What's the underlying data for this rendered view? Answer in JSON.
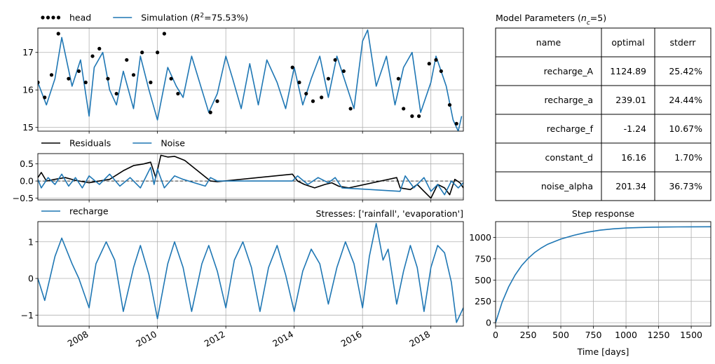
{
  "chart_data": [
    {
      "id": "head",
      "type": "line",
      "legend": [
        {
          "label": "head",
          "style": "dots",
          "color": "#000000"
        },
        {
          "label": "Simulation ($R^2$=75.53%)",
          "style": "line",
          "color": "#1f77b4"
        }
      ],
      "ylim": [
        14.9,
        17.65
      ],
      "yticks": [
        15,
        16,
        17
      ],
      "grid": true,
      "series": [
        {
          "name": "Simulation",
          "color": "#1f77b4",
          "x": [
            2006.5,
            2006.75,
            2007.0,
            2007.2,
            2007.5,
            2007.75,
            2008.0,
            2008.15,
            2008.4,
            2008.6,
            2008.8,
            2009.0,
            2009.3,
            2009.5,
            2009.75,
            2010.0,
            2010.3,
            2010.55,
            2010.75,
            2011.0,
            2011.3,
            2011.5,
            2011.75,
            2012.0,
            2012.2,
            2012.45,
            2012.7,
            2012.95,
            2013.2,
            2013.5,
            2013.75,
            2014.0,
            2014.25,
            2014.5,
            2014.75,
            2015.0,
            2015.25,
            2015.5,
            2015.75,
            2016.0,
            2016.15,
            2016.4,
            2016.7,
            2016.95,
            2017.2,
            2017.45,
            2017.7,
            2018.0,
            2018.15,
            2018.45,
            2018.65,
            2018.8,
            2018.9
          ],
          "y": [
            16.2,
            15.6,
            16.3,
            17.4,
            16.1,
            16.8,
            15.3,
            16.6,
            17.0,
            16.0,
            15.6,
            16.5,
            15.5,
            16.9,
            16.0,
            15.2,
            16.6,
            16.1,
            15.8,
            16.9,
            16.0,
            15.4,
            15.9,
            16.9,
            16.3,
            15.5,
            16.7,
            15.6,
            16.8,
            16.2,
            15.5,
            16.6,
            15.6,
            16.3,
            16.9,
            15.8,
            16.9,
            16.2,
            15.5,
            17.3,
            17.6,
            16.1,
            16.9,
            15.6,
            16.6,
            17.0,
            15.4,
            16.2,
            16.9,
            16.1,
            15.2,
            14.9,
            15.3
          ]
        },
        {
          "name": "head",
          "color": "#000000",
          "x": [
            2006.5,
            2006.7,
            2006.9,
            2007.1,
            2007.4,
            2007.7,
            2007.9,
            2008.1,
            2008.3,
            2008.55,
            2008.8,
            2009.1,
            2009.3,
            2009.55,
            2009.8,
            2010.0,
            2010.2,
            2010.4,
            2010.6,
            2011.55,
            2011.75,
            2013.95,
            2014.15,
            2014.35,
            2014.55,
            2014.8,
            2015.0,
            2015.2,
            2015.45,
            2015.65,
            2017.05,
            2017.2,
            2017.45,
            2017.65,
            2017.95,
            2018.15,
            2018.3,
            2018.55,
            2018.75
          ],
          "y": [
            16.2,
            15.8,
            16.4,
            17.5,
            16.3,
            16.5,
            16.2,
            16.9,
            17.1,
            16.3,
            15.9,
            16.8,
            16.4,
            17.0,
            16.2,
            17.0,
            17.5,
            16.3,
            15.9,
            15.4,
            15.7,
            16.6,
            16.2,
            15.9,
            15.7,
            15.8,
            16.3,
            16.8,
            16.5,
            15.5,
            16.3,
            15.5,
            15.3,
            15.3,
            16.7,
            16.8,
            16.5,
            15.6,
            15.1
          ]
        }
      ]
    },
    {
      "id": "residuals",
      "type": "line",
      "legend": [
        {
          "label": "Residuals",
          "style": "line",
          "color": "#000000"
        },
        {
          "label": "Noise",
          "style": "line",
          "color": "#1f77b4"
        }
      ],
      "ylim": [
        -0.55,
        0.8
      ],
      "yticks": [
        0.5,
        0.0,
        -0.5
      ],
      "ytick_labels": [
        "0.5",
        "0.0",
        "−0.5"
      ],
      "grid": true,
      "series": [
        {
          "name": "Residuals",
          "color": "#000000",
          "x": [
            2006.5,
            2006.6,
            2006.75,
            2007.0,
            2007.3,
            2007.6,
            2008.0,
            2008.3,
            2008.6,
            2009.0,
            2009.3,
            2009.6,
            2009.8,
            2009.95,
            2010.1,
            2010.3,
            2010.5,
            2010.8,
            2011.55,
            2011.75,
            2013.95,
            2014.1,
            2014.3,
            2014.6,
            2014.9,
            2015.1,
            2015.3,
            2015.6,
            2017.0,
            2017.1,
            2017.4,
            2017.6,
            2017.8,
            2018.0,
            2018.2,
            2018.4,
            2018.55,
            2018.7,
            2018.85,
            2018.95
          ],
          "y": [
            0.1,
            0.25,
            0.0,
            0.05,
            0.1,
            0.02,
            -0.05,
            0.0,
            0.05,
            0.3,
            0.45,
            0.5,
            0.55,
            0.1,
            0.75,
            0.7,
            0.72,
            0.6,
            0.0,
            -0.02,
            0.2,
            0.0,
            -0.1,
            -0.2,
            -0.1,
            -0.05,
            -0.15,
            -0.2,
            0.1,
            -0.2,
            -0.25,
            -0.1,
            -0.3,
            -0.5,
            -0.1,
            -0.2,
            -0.4,
            0.05,
            -0.05,
            -0.2
          ]
        },
        {
          "name": "Noise",
          "color": "#1f77b4",
          "x": [
            2006.5,
            2006.6,
            2006.8,
            2007.0,
            2007.2,
            2007.4,
            2007.6,
            2007.8,
            2008.0,
            2008.3,
            2008.6,
            2008.9,
            2009.2,
            2009.5,
            2009.8,
            2009.9,
            2010.0,
            2010.2,
            2010.5,
            2010.75,
            2011.4,
            2011.55,
            2011.75,
            2013.95,
            2014.1,
            2014.4,
            2014.7,
            2015.0,
            2015.2,
            2015.4,
            2017.1,
            2017.25,
            2017.5,
            2017.8,
            2018.0,
            2018.2,
            2018.4,
            2018.6,
            2018.8,
            2018.95
          ],
          "y": [
            0.05,
            -0.2,
            0.1,
            -0.1,
            0.2,
            -0.15,
            0.1,
            -0.2,
            0.15,
            -0.1,
            0.2,
            -0.15,
            0.1,
            -0.2,
            0.4,
            -0.1,
            0.35,
            -0.2,
            0.15,
            0.05,
            -0.15,
            0.1,
            0.0,
            0.0,
            0.15,
            -0.1,
            0.1,
            -0.05,
            0.1,
            -0.2,
            -0.3,
            0.15,
            -0.2,
            0.1,
            -0.3,
            -0.1,
            -0.4,
            0.0,
            -0.2,
            -0.05
          ]
        }
      ]
    },
    {
      "id": "stresses",
      "type": "line",
      "legend": [
        {
          "label": "recharge",
          "style": "line",
          "color": "#1f77b4"
        }
      ],
      "title_right": "Stresses: ['rainfall', 'evaporation']",
      "ylim": [
        -1.3,
        1.55
      ],
      "yticks": [
        1,
        0,
        -1
      ],
      "ytick_labels": [
        "1",
        "0",
        "−1"
      ],
      "xlim": [
        2006.5,
        2018.95
      ],
      "xticks": [
        2008,
        2010,
        2012,
        2014,
        2016,
        2018
      ],
      "xtick_labels": [
        "2008",
        "2010",
        "2012",
        "2014",
        "2016",
        "2018"
      ],
      "grid": true,
      "series": [
        {
          "name": "recharge",
          "color": "#1f77b4",
          "x": [
            2006.5,
            2006.7,
            2007.0,
            2007.2,
            2007.5,
            2007.7,
            2008.0,
            2008.2,
            2008.5,
            2008.75,
            2009.0,
            2009.3,
            2009.5,
            2009.75,
            2010.0,
            2010.3,
            2010.5,
            2010.75,
            2011.0,
            2011.3,
            2011.5,
            2011.75,
            2012.0,
            2012.25,
            2012.5,
            2012.75,
            2013.0,
            2013.25,
            2013.5,
            2013.75,
            2014.0,
            2014.25,
            2014.5,
            2014.75,
            2015.0,
            2015.25,
            2015.5,
            2015.75,
            2016.0,
            2016.2,
            2016.4,
            2016.6,
            2016.75,
            2017.0,
            2017.2,
            2017.4,
            2017.6,
            2017.8,
            2018.0,
            2018.2,
            2018.4,
            2018.6,
            2018.75,
            2018.95
          ],
          "y": [
            0.0,
            -0.6,
            0.6,
            1.1,
            0.4,
            0.0,
            -0.8,
            0.4,
            1.0,
            0.5,
            -0.9,
            0.3,
            0.9,
            0.1,
            -1.1,
            0.4,
            1.0,
            0.3,
            -0.9,
            0.4,
            0.9,
            0.2,
            -0.8,
            0.5,
            1.0,
            0.3,
            -0.9,
            0.3,
            0.9,
            0.1,
            -0.9,
            0.2,
            0.8,
            0.4,
            -0.7,
            0.3,
            1.0,
            0.4,
            -0.8,
            0.6,
            1.5,
            0.5,
            0.8,
            -0.7,
            0.2,
            0.9,
            0.3,
            -0.9,
            0.3,
            0.9,
            0.7,
            -0.1,
            -1.2,
            -0.8
          ]
        }
      ]
    },
    {
      "id": "step_response",
      "type": "line",
      "title": "Step response",
      "xlabel": "Time [days]",
      "xlim": [
        0,
        1650
      ],
      "ylim": [
        -40,
        1185
      ],
      "xticks": [
        0,
        250,
        500,
        750,
        1000,
        1250,
        1500
      ],
      "yticks": [
        0,
        250,
        500,
        750,
        1000
      ],
      "grid": true,
      "series": [
        {
          "name": "step",
          "color": "#1f77b4",
          "x": [
            0,
            50,
            100,
            150,
            200,
            250,
            300,
            350,
            400,
            500,
            600,
            700,
            800,
            900,
            1000,
            1100,
            1200,
            1300,
            1400,
            1500,
            1650
          ],
          "y": [
            0,
            240,
            420,
            560,
            670,
            755,
            823,
            877,
            920,
            980,
            1025,
            1060,
            1085,
            1100,
            1110,
            1116,
            1120,
            1122,
            1123,
            1124,
            1125
          ]
        }
      ]
    }
  ],
  "parameters_table": {
    "title": "Model Parameters ($n_c$=5)",
    "columns": [
      "name",
      "optimal",
      "stderr"
    ],
    "rows": [
      [
        "recharge_A",
        "1124.89",
        "25.42%"
      ],
      [
        "recharge_a",
        "239.01",
        "24.44%"
      ],
      [
        "recharge_f",
        "-1.24",
        "10.67%"
      ],
      [
        "constant_d",
        "16.16",
        "1.70%"
      ],
      [
        "noise_alpha",
        "201.34",
        "36.73%"
      ]
    ]
  }
}
